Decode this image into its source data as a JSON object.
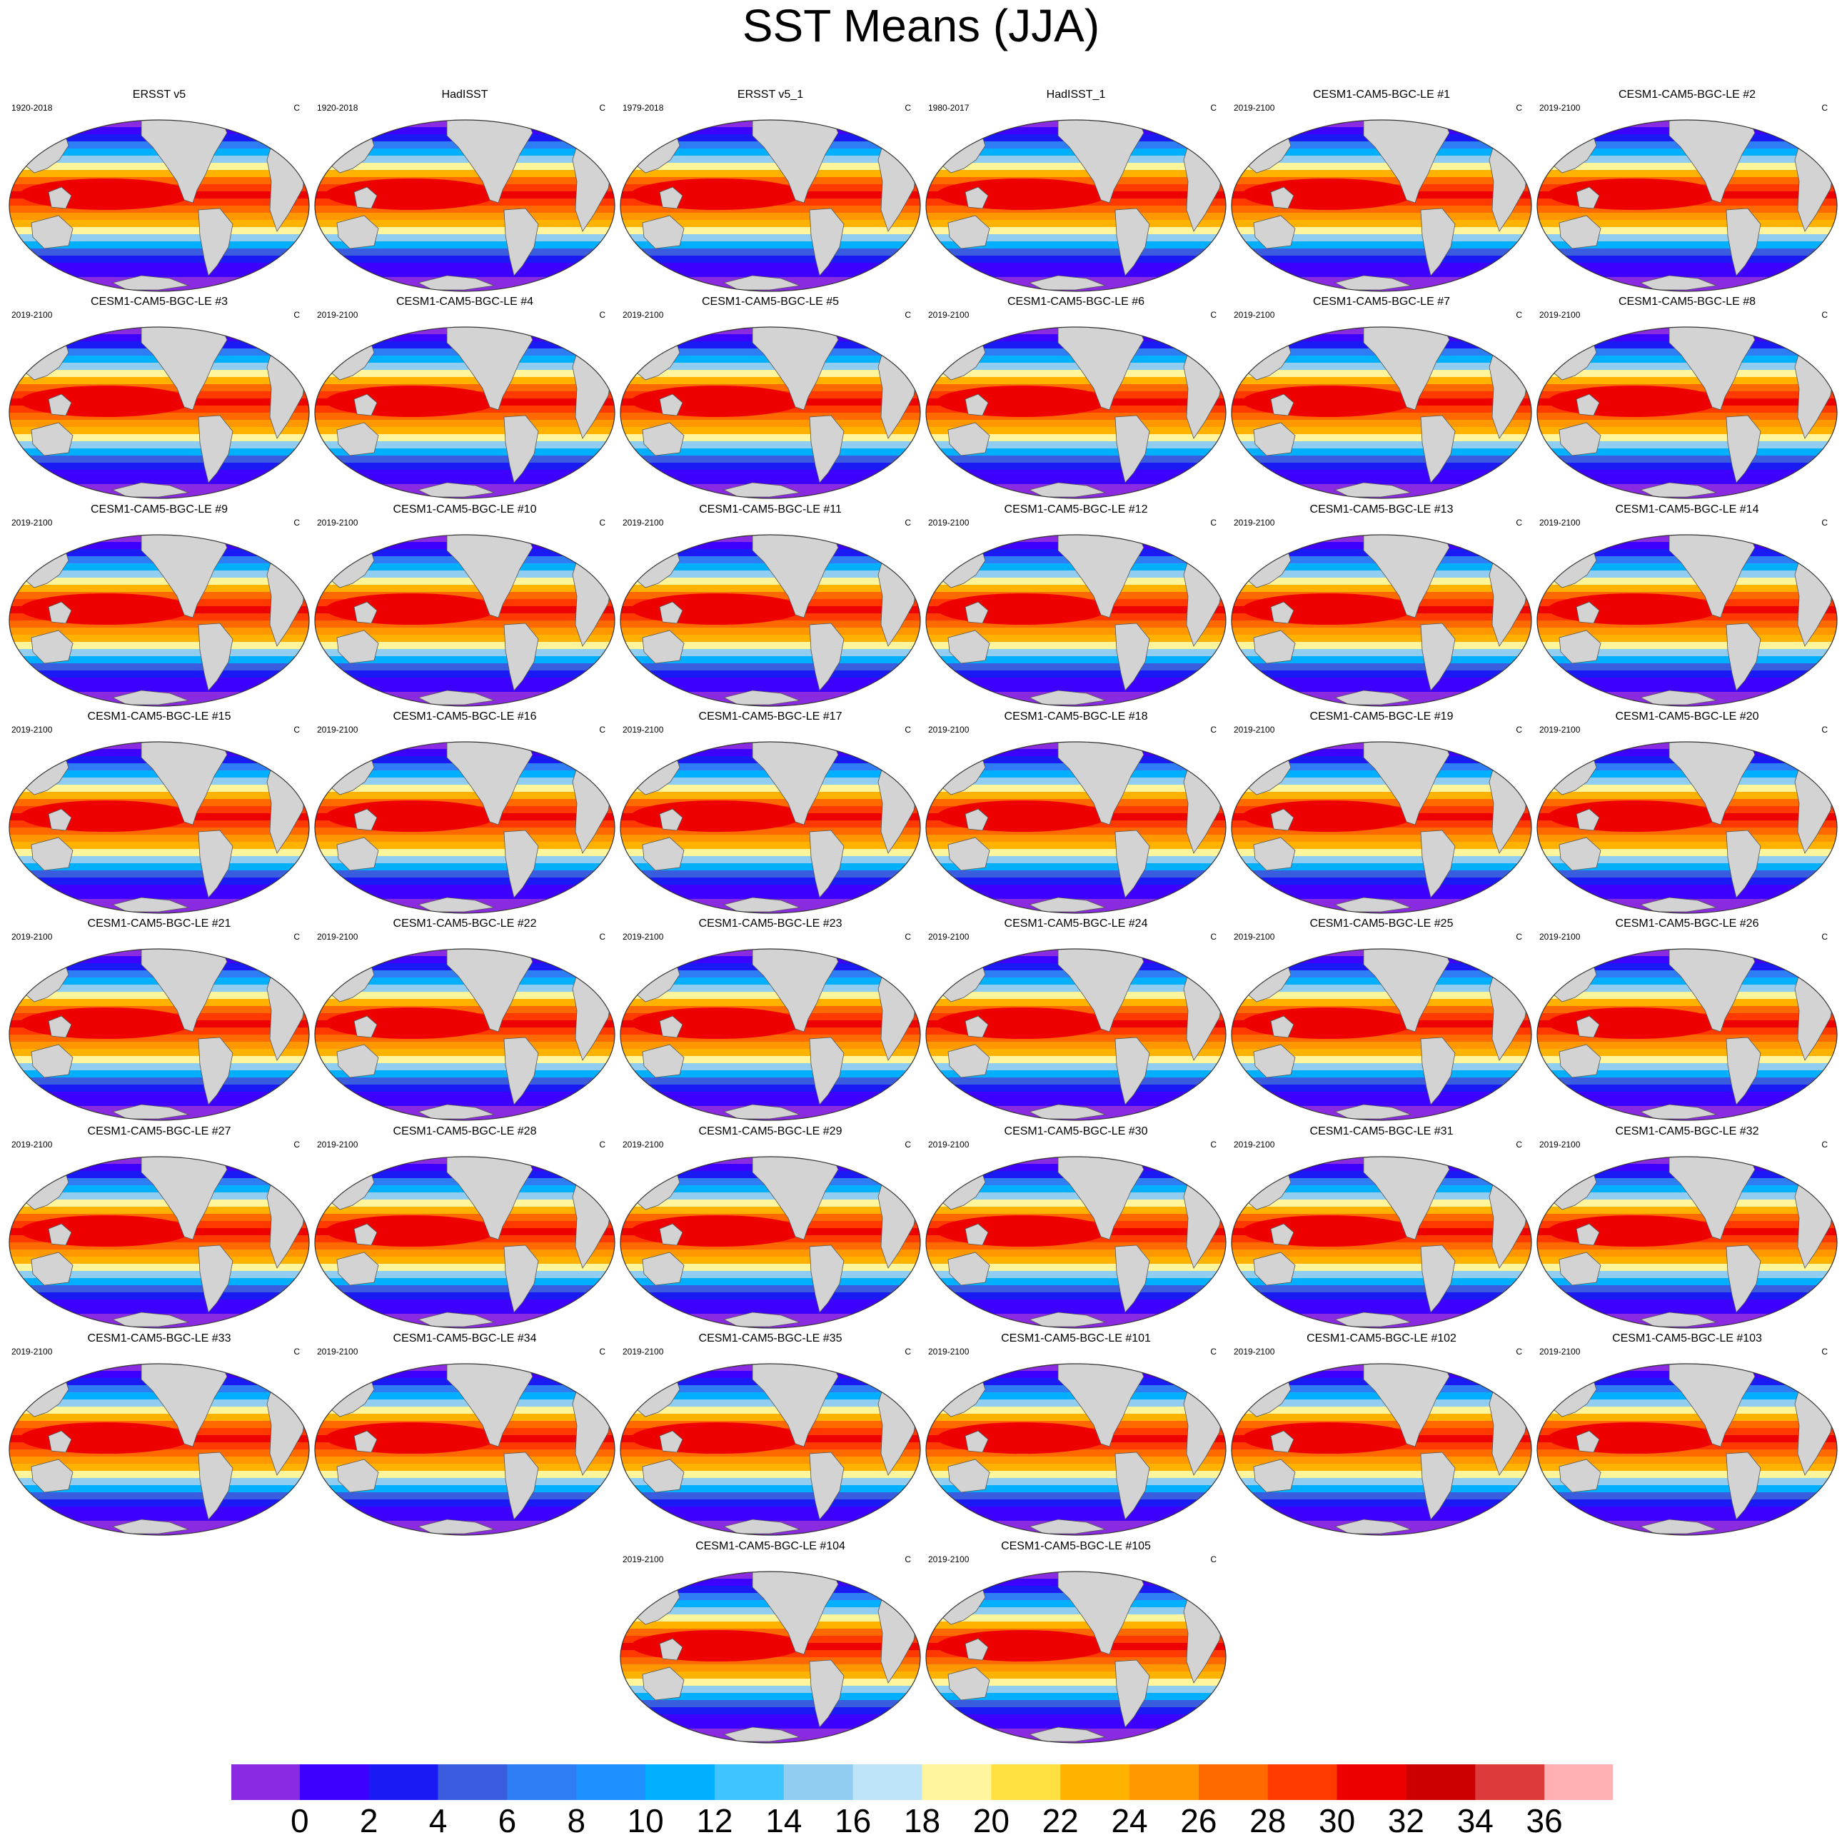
{
  "title": "SST Means (JJA)",
  "chart_data": {
    "type": "heatmap",
    "title": "SST Means (JJA)",
    "units": "C",
    "panels": [
      {
        "name": "ERSST v5",
        "years": "1920-2018"
      },
      {
        "name": "HadISST",
        "years": "1920-2018"
      },
      {
        "name": "ERSST v5_1",
        "years": "1979-2018"
      },
      {
        "name": "HadISST_1",
        "years": "1980-2017"
      },
      {
        "name": "CESM1-CAM5-BGC-LE #1",
        "years": "2019-2100"
      },
      {
        "name": "CESM1-CAM5-BGC-LE #2",
        "years": "2019-2100"
      },
      {
        "name": "CESM1-CAM5-BGC-LE #3",
        "years": "2019-2100"
      },
      {
        "name": "CESM1-CAM5-BGC-LE #4",
        "years": "2019-2100"
      },
      {
        "name": "CESM1-CAM5-BGC-LE #5",
        "years": "2019-2100"
      },
      {
        "name": "CESM1-CAM5-BGC-LE #6",
        "years": "2019-2100"
      },
      {
        "name": "CESM1-CAM5-BGC-LE #7",
        "years": "2019-2100"
      },
      {
        "name": "CESM1-CAM5-BGC-LE #8",
        "years": "2019-2100"
      },
      {
        "name": "CESM1-CAM5-BGC-LE #9",
        "years": "2019-2100"
      },
      {
        "name": "CESM1-CAM5-BGC-LE #10",
        "years": "2019-2100"
      },
      {
        "name": "CESM1-CAM5-BGC-LE #11",
        "years": "2019-2100"
      },
      {
        "name": "CESM1-CAM5-BGC-LE #12",
        "years": "2019-2100"
      },
      {
        "name": "CESM1-CAM5-BGC-LE #13",
        "years": "2019-2100"
      },
      {
        "name": "CESM1-CAM5-BGC-LE #14",
        "years": "2019-2100"
      },
      {
        "name": "CESM1-CAM5-BGC-LE #15",
        "years": "2019-2100"
      },
      {
        "name": "CESM1-CAM5-BGC-LE #16",
        "years": "2019-2100"
      },
      {
        "name": "CESM1-CAM5-BGC-LE #17",
        "years": "2019-2100"
      },
      {
        "name": "CESM1-CAM5-BGC-LE #18",
        "years": "2019-2100"
      },
      {
        "name": "CESM1-CAM5-BGC-LE #19",
        "years": "2019-2100"
      },
      {
        "name": "CESM1-CAM5-BGC-LE #20",
        "years": "2019-2100"
      },
      {
        "name": "CESM1-CAM5-BGC-LE #21",
        "years": "2019-2100"
      },
      {
        "name": "CESM1-CAM5-BGC-LE #22",
        "years": "2019-2100"
      },
      {
        "name": "CESM1-CAM5-BGC-LE #23",
        "years": "2019-2100"
      },
      {
        "name": "CESM1-CAM5-BGC-LE #24",
        "years": "2019-2100"
      },
      {
        "name": "CESM1-CAM5-BGC-LE #25",
        "years": "2019-2100"
      },
      {
        "name": "CESM1-CAM5-BGC-LE #26",
        "years": "2019-2100"
      },
      {
        "name": "CESM1-CAM5-BGC-LE #27",
        "years": "2019-2100"
      },
      {
        "name": "CESM1-CAM5-BGC-LE #28",
        "years": "2019-2100"
      },
      {
        "name": "CESM1-CAM5-BGC-LE #29",
        "years": "2019-2100"
      },
      {
        "name": "CESM1-CAM5-BGC-LE #30",
        "years": "2019-2100"
      },
      {
        "name": "CESM1-CAM5-BGC-LE #31",
        "years": "2019-2100"
      },
      {
        "name": "CESM1-CAM5-BGC-LE #32",
        "years": "2019-2100"
      },
      {
        "name": "CESM1-CAM5-BGC-LE #33",
        "years": "2019-2100"
      },
      {
        "name": "CESM1-CAM5-BGC-LE #34",
        "years": "2019-2100"
      },
      {
        "name": "CESM1-CAM5-BGC-LE #35",
        "years": "2019-2100"
      },
      {
        "name": "CESM1-CAM5-BGC-LE #101",
        "years": "2019-2100"
      },
      {
        "name": "CESM1-CAM5-BGC-LE #102",
        "years": "2019-2100"
      },
      {
        "name": "CESM1-CAM5-BGC-LE #103",
        "years": "2019-2100"
      },
      {
        "name": "CESM1-CAM5-BGC-LE #104",
        "years": "2019-2100"
      },
      {
        "name": "CESM1-CAM5-BGC-LE #105",
        "years": "2019-2100"
      }
    ],
    "colorbar": {
      "ticks": [
        0,
        2,
        4,
        6,
        8,
        10,
        12,
        14,
        16,
        18,
        20,
        22,
        24,
        26,
        28,
        30,
        32,
        34,
        36
      ],
      "colors": [
        "#8a2be2",
        "#3d00ff",
        "#1a1af5",
        "#3a5de0",
        "#2e7df5",
        "#1e90ff",
        "#00b0ff",
        "#40c4ff",
        "#90cdf0",
        "#bfe3f7",
        "#fff59d",
        "#ffe040",
        "#ffb300",
        "#ff9800",
        "#ff6a00",
        "#ff3a00",
        "#ee0000",
        "#cc0000",
        "#dd3b3b",
        "#ffb0b0"
      ]
    },
    "land_color": "#d3d3d3"
  }
}
